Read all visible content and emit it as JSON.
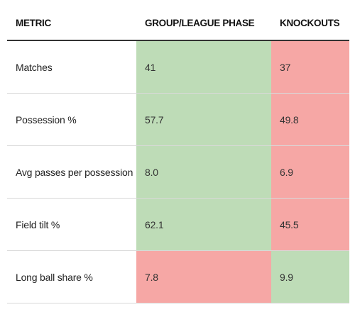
{
  "columns": {
    "metric": "METRIC",
    "group": "GROUP/LEAGUE PHASE",
    "knockouts": "KNOCKOUTS"
  },
  "colors": {
    "better": "#bedcb7",
    "worse": "#f6a7a5"
  },
  "rows": [
    {
      "metric": "Matches",
      "group": "41",
      "knockouts": "37",
      "group_status": "better",
      "knockouts_status": "worse"
    },
    {
      "metric": "Possession %",
      "group": "57.7",
      "knockouts": "49.8",
      "group_status": "better",
      "knockouts_status": "worse"
    },
    {
      "metric": "Avg passes per possession",
      "group": "8.0",
      "knockouts": "6.9",
      "group_status": "better",
      "knockouts_status": "worse"
    },
    {
      "metric": "Field tilt %",
      "group": "62.1",
      "knockouts": "45.5",
      "group_status": "better",
      "knockouts_status": "worse"
    },
    {
      "metric": "Long ball share %",
      "group": "7.8",
      "knockouts": "9.9",
      "group_status": "worse",
      "knockouts_status": "better"
    }
  ]
}
